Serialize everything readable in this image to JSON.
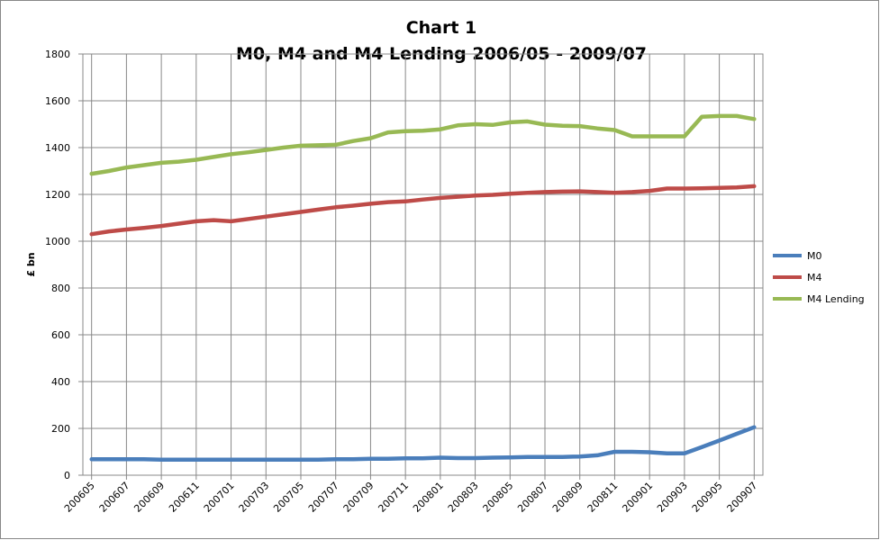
{
  "chart_data": {
    "type": "line",
    "title": "Chart 1",
    "subtitle": "M0, M4 and M4 Lending 2006/05 - 2009/07",
    "y_label": "£ bn",
    "categories": [
      "200605",
      null,
      "200607",
      null,
      "200609",
      null,
      "200611",
      null,
      "200701",
      null,
      "200703",
      null,
      "200705",
      null,
      "200707",
      null,
      "200709",
      null,
      "200711",
      null,
      "200801",
      null,
      "200803",
      null,
      "200805",
      null,
      "200807",
      null,
      "200809",
      null,
      "200811",
      null,
      "200901",
      null,
      "200903",
      null,
      "200905",
      null,
      "200907"
    ],
    "series": [
      {
        "name": "M0",
        "color": "#4a7ebb",
        "values": [
          68,
          68,
          68,
          68,
          66,
          66,
          66,
          66,
          66,
          66,
          66,
          66,
          66,
          66,
          68,
          68,
          70,
          70,
          72,
          72,
          75,
          73,
          73,
          75,
          76,
          78,
          78,
          78,
          80,
          85,
          100,
          100,
          98,
          93,
          93,
          120,
          148,
          177,
          205
        ]
      },
      {
        "name": "M4",
        "color": "#be4b48",
        "values": [
          1030,
          1042,
          1050,
          1057,
          1065,
          1075,
          1085,
          1090,
          1085,
          1095,
          1105,
          1115,
          1125,
          1135,
          1145,
          1152,
          1160,
          1167,
          1170,
          1178,
          1185,
          1190,
          1195,
          1198,
          1203,
          1207,
          1210,
          1212,
          1213,
          1210,
          1207,
          1210,
          1215,
          1225,
          1225,
          1226,
          1228,
          1230,
          1235
        ]
      },
      {
        "name": "M4 Lending",
        "color": "#98b954",
        "values": [
          1288,
          1300,
          1315,
          1325,
          1335,
          1340,
          1348,
          1360,
          1372,
          1380,
          1390,
          1400,
          1408,
          1410,
          1412,
          1428,
          1440,
          1465,
          1470,
          1472,
          1478,
          1495,
          1500,
          1497,
          1508,
          1512,
          1498,
          1493,
          1492,
          1482,
          1475,
          1448,
          1448,
          1448,
          1448,
          1532,
          1535,
          1535,
          1522
        ]
      }
    ],
    "ylim": [
      0,
      1800
    ],
    "yticks": [
      0,
      200,
      400,
      600,
      800,
      1000,
      1200,
      1400,
      1600,
      1800
    ],
    "grid": true,
    "legend": "right"
  }
}
